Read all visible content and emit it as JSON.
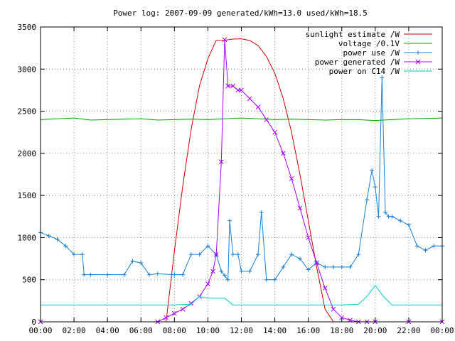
{
  "chart_data": {
    "type": "line",
    "title": "Power log: 2007-09-09 generated/kWh=13.0 used/kWh=18.5",
    "xlabel": "",
    "ylabel": "",
    "xlim": [
      0,
      24
    ],
    "ylim": [
      0,
      3500
    ],
    "x_ticks": [
      "00:00",
      "02:00",
      "04:00",
      "06:00",
      "08:00",
      "10:00",
      "12:00",
      "14:00",
      "16:00",
      "18:00",
      "20:00",
      "22:00",
      "00:00"
    ],
    "y_ticks": [
      "0",
      "500",
      "1000",
      "1500",
      "2000",
      "2500",
      "3000",
      "3500"
    ],
    "y_tick_values": [
      0,
      500,
      1000,
      1500,
      2000,
      2500,
      3000,
      3500
    ],
    "grid": true,
    "legend_position": "top-right",
    "series": [
      {
        "name": "sunlight estimate /W",
        "color": "#cc0000",
        "marker": "none",
        "x": [
          7.5,
          8.0,
          8.5,
          9.0,
          9.5,
          10.0,
          10.5,
          11.0,
          11.5,
          12.0,
          12.5,
          13.0,
          13.5,
          14.0,
          14.5,
          15.0,
          15.5,
          16.0,
          16.5,
          17.0,
          17.5
        ],
        "y": [
          0,
          837,
          1617,
          2287,
          2801,
          3123,
          3342,
          3343,
          3357,
          3360,
          3340,
          3280,
          3150,
          2950,
          2650,
          2250,
          1750,
          1200,
          650,
          150,
          0
        ]
      },
      {
        "name": "voltage /0.1V",
        "color": "#00a000",
        "marker": "none",
        "x": [
          0,
          1,
          2,
          3,
          4,
          5,
          6,
          7,
          8,
          9,
          10,
          11,
          12,
          13,
          14,
          15,
          16,
          17,
          18,
          19,
          20,
          21,
          22,
          23,
          24
        ],
        "y": [
          2400,
          2410,
          2420,
          2395,
          2400,
          2405,
          2410,
          2395,
          2400,
          2405,
          2400,
          2410,
          2420,
          2410,
          2400,
          2405,
          2400,
          2395,
          2400,
          2400,
          2390,
          2400,
          2410,
          2415,
          2420
        ]
      },
      {
        "name": "power use /W",
        "color": "#1a7fd6",
        "marker": "plus",
        "x": [
          0,
          0.5,
          1.0,
          1.5,
          2.0,
          2.5,
          2.6,
          3.0,
          4.0,
          5.0,
          5.5,
          6.0,
          6.5,
          7.0,
          8.0,
          8.5,
          9.0,
          9.5,
          10.0,
          10.5,
          10.8,
          11.0,
          11.2,
          11.3,
          11.5,
          11.8,
          12.0,
          12.5,
          13.0,
          13.2,
          13.5,
          14.0,
          14.5,
          15.0,
          15.5,
          16.0,
          16.5,
          17.0,
          17.5,
          18.0,
          18.5,
          19.0,
          19.5,
          19.8,
          20.0,
          20.2,
          20.4,
          20.6,
          20.8,
          21.0,
          21.5,
          22.0,
          22.5,
          23.0,
          23.5,
          24.0
        ],
        "y": [
          1060,
          1020,
          980,
          900,
          800,
          800,
          560,
          560,
          560,
          560,
          720,
          700,
          560,
          570,
          560,
          560,
          800,
          800,
          900,
          800,
          600,
          550,
          500,
          1200,
          800,
          800,
          600,
          600,
          800,
          1300,
          500,
          500,
          650,
          800,
          750,
          620,
          700,
          650,
          650,
          650,
          650,
          800,
          1450,
          1800,
          1600,
          1250,
          2900,
          1300,
          1250,
          1250,
          1200,
          1150,
          900,
          850,
          900,
          900
        ]
      },
      {
        "name": "power generated /W",
        "color": "#aa00ff",
        "marker": "x",
        "x": [
          0,
          7.0,
          7.5,
          8.0,
          8.5,
          9.0,
          9.5,
          10.0,
          10.3,
          10.5,
          10.8,
          11.0,
          11.2,
          11.5,
          11.8,
          12.0,
          12.5,
          13.0,
          13.5,
          14.0,
          14.5,
          15.0,
          15.5,
          16.0,
          16.5,
          17.0,
          17.5,
          18.0,
          18.5,
          19.0,
          19.5,
          20.0,
          22.0,
          24.0
        ],
        "y": [
          0,
          0,
          50,
          100,
          150,
          220,
          300,
          450,
          600,
          800,
          1900,
          3350,
          2800,
          2800,
          2750,
          2750,
          2650,
          2550,
          2400,
          2250,
          2000,
          1700,
          1350,
          1000,
          700,
          400,
          150,
          50,
          20,
          0,
          0,
          0,
          0,
          0
        ]
      },
      {
        "name": "power on C14 /W",
        "color": "#00cccc",
        "marker": "none",
        "x": [
          0,
          1,
          2,
          3,
          4,
          5,
          6,
          7,
          8,
          9,
          9.5,
          10.0,
          10.5,
          11.0,
          11.5,
          12,
          13,
          14,
          15,
          16,
          17,
          18,
          19,
          19.5,
          20.0,
          20.5,
          21,
          22,
          23,
          24
        ],
        "y": [
          200,
          200,
          200,
          200,
          200,
          200,
          200,
          200,
          200,
          210,
          300,
          280,
          280,
          280,
          200,
          200,
          200,
          200,
          200,
          200,
          200,
          200,
          210,
          300,
          430,
          300,
          200,
          200,
          200,
          200
        ]
      }
    ]
  }
}
